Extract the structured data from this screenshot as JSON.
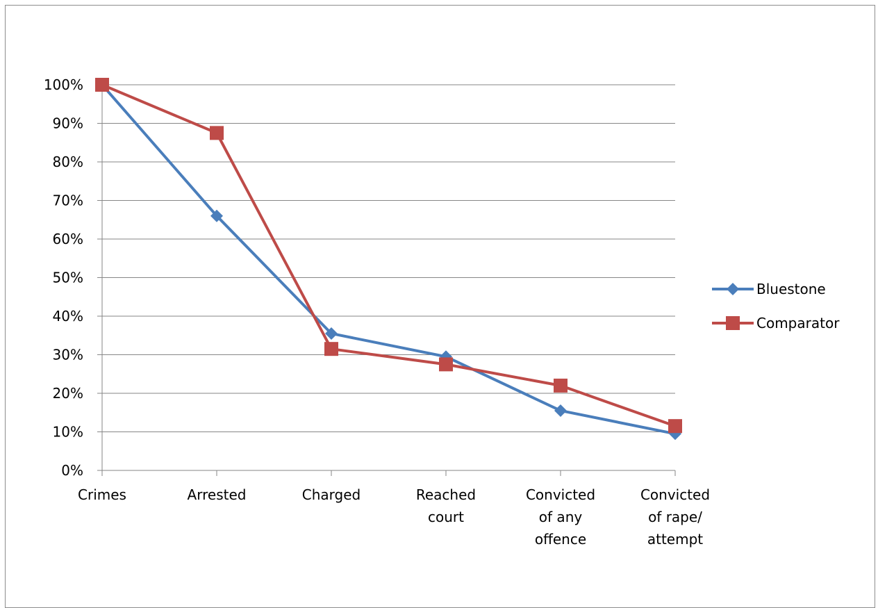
{
  "chart_data": {
    "type": "line",
    "categories": [
      [
        "Crimes"
      ],
      [
        "Arrested"
      ],
      [
        "Charged"
      ],
      [
        "Reached",
        "court"
      ],
      [
        "Convicted",
        "of any",
        "offence"
      ],
      [
        "Convicted",
        "of rape/",
        "attempt"
      ]
    ],
    "y_ticks": [
      "0%",
      "10%",
      "20%",
      "30%",
      "40%",
      "50%",
      "60%",
      "70%",
      "80%",
      "90%",
      "100%"
    ],
    "ylim": [
      0,
      100
    ],
    "grid": true,
    "legend_position": "right",
    "series": [
      {
        "name": "Bluestone",
        "color": "#4a7ebb",
        "marker": "diamond",
        "values": [
          100,
          66,
          35.5,
          29.5,
          15.5,
          9.5
        ]
      },
      {
        "name": "Comparator",
        "color": "#be4b48",
        "marker": "square",
        "values": [
          100,
          87.5,
          31.5,
          27.5,
          22,
          11.5
        ]
      }
    ]
  }
}
